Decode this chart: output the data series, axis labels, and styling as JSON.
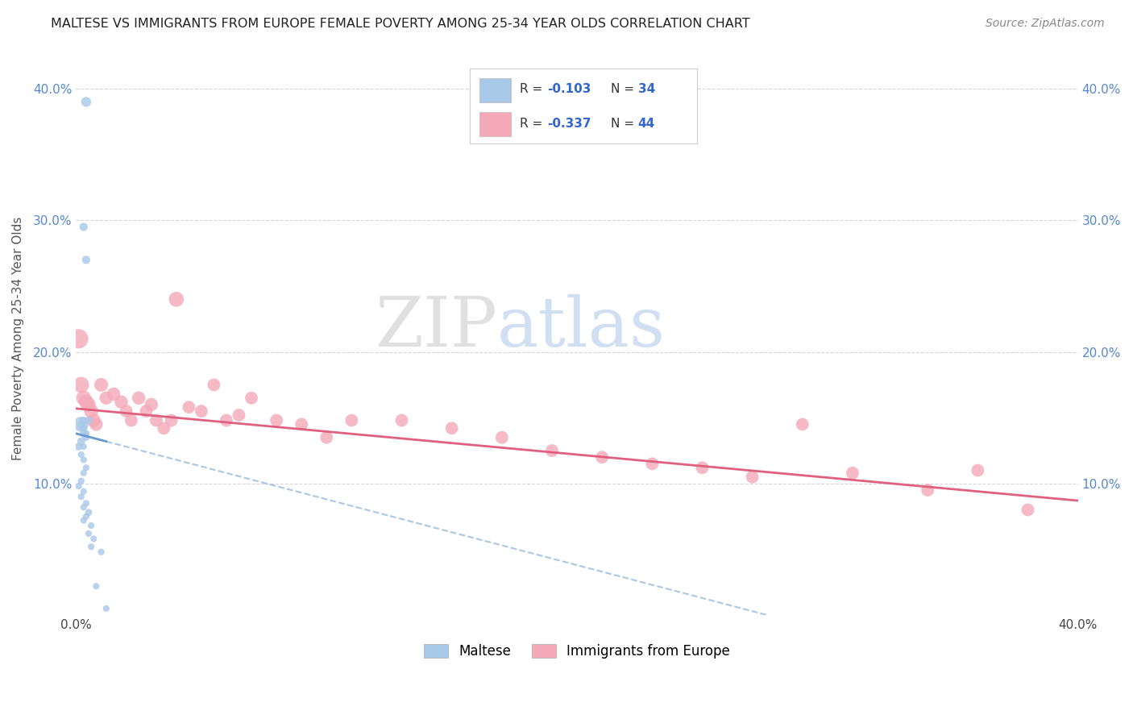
{
  "title": "MALTESE VS IMMIGRANTS FROM EUROPE FEMALE POVERTY AMONG 25-34 YEAR OLDS CORRELATION CHART",
  "source": "Source: ZipAtlas.com",
  "ylabel": "Female Poverty Among 25-34 Year Olds",
  "xlim": [
    0.0,
    0.4
  ],
  "ylim": [
    0.0,
    0.42
  ],
  "xticks": [
    0.0,
    0.05,
    0.1,
    0.15,
    0.2,
    0.25,
    0.3,
    0.35,
    0.4
  ],
  "yticks": [
    0.0,
    0.1,
    0.2,
    0.3,
    0.4
  ],
  "color_maltese": "#a8c8e8",
  "color_europe": "#f4a8b8",
  "color_line_maltese": "#6699cc",
  "color_line_europe": "#e06080",
  "background_color": "#ffffff",
  "maltese_x": [
    0.004,
    0.004,
    0.003,
    0.002,
    0.003,
    0.002,
    0.001,
    0.002,
    0.003,
    0.003,
    0.004,
    0.005,
    0.004,
    0.003,
    0.002,
    0.003,
    0.004,
    0.003,
    0.002,
    0.001,
    0.003,
    0.002,
    0.004,
    0.003,
    0.005,
    0.004,
    0.003,
    0.006,
    0.005,
    0.007,
    0.006,
    0.01,
    0.008,
    0.012
  ],
  "maltese_y": [
    0.39,
    0.27,
    0.295,
    0.145,
    0.138,
    0.132,
    0.128,
    0.145,
    0.148,
    0.142,
    0.138,
    0.148,
    0.135,
    0.128,
    0.122,
    0.118,
    0.112,
    0.108,
    0.102,
    0.098,
    0.094,
    0.09,
    0.085,
    0.082,
    0.078,
    0.075,
    0.072,
    0.068,
    0.062,
    0.058,
    0.052,
    0.048,
    0.022,
    0.005
  ],
  "maltese_size": [
    80,
    55,
    55,
    180,
    55,
    50,
    45,
    50,
    45,
    40,
    40,
    50,
    40,
    35,
    35,
    35,
    35,
    35,
    35,
    35,
    35,
    35,
    35,
    35,
    40,
    35,
    35,
    35,
    35,
    35,
    35,
    35,
    35,
    35
  ],
  "europe_x": [
    0.001,
    0.002,
    0.003,
    0.004,
    0.005,
    0.006,
    0.007,
    0.008,
    0.01,
    0.012,
    0.015,
    0.018,
    0.02,
    0.022,
    0.025,
    0.028,
    0.03,
    0.032,
    0.035,
    0.038,
    0.04,
    0.045,
    0.05,
    0.055,
    0.06,
    0.065,
    0.07,
    0.08,
    0.09,
    0.1,
    0.11,
    0.13,
    0.15,
    0.17,
    0.19,
    0.21,
    0.23,
    0.25,
    0.27,
    0.29,
    0.31,
    0.34,
    0.36,
    0.38
  ],
  "europe_y": [
    0.21,
    0.175,
    0.165,
    0.162,
    0.16,
    0.155,
    0.148,
    0.145,
    0.175,
    0.165,
    0.168,
    0.162,
    0.155,
    0.148,
    0.165,
    0.155,
    0.16,
    0.148,
    0.142,
    0.148,
    0.24,
    0.158,
    0.155,
    0.175,
    0.148,
    0.152,
    0.165,
    0.148,
    0.145,
    0.135,
    0.148,
    0.148,
    0.142,
    0.135,
    0.125,
    0.12,
    0.115,
    0.112,
    0.105,
    0.145,
    0.108,
    0.095,
    0.11,
    0.08
  ],
  "europe_size": [
    300,
    200,
    180,
    170,
    160,
    160,
    150,
    140,
    150,
    140,
    140,
    140,
    130,
    130,
    140,
    130,
    140,
    130,
    130,
    130,
    180,
    130,
    130,
    130,
    130,
    130,
    130,
    130,
    130,
    130,
    130,
    130,
    130,
    130,
    130,
    130,
    130,
    130,
    130,
    130,
    130,
    130,
    130,
    130
  ]
}
